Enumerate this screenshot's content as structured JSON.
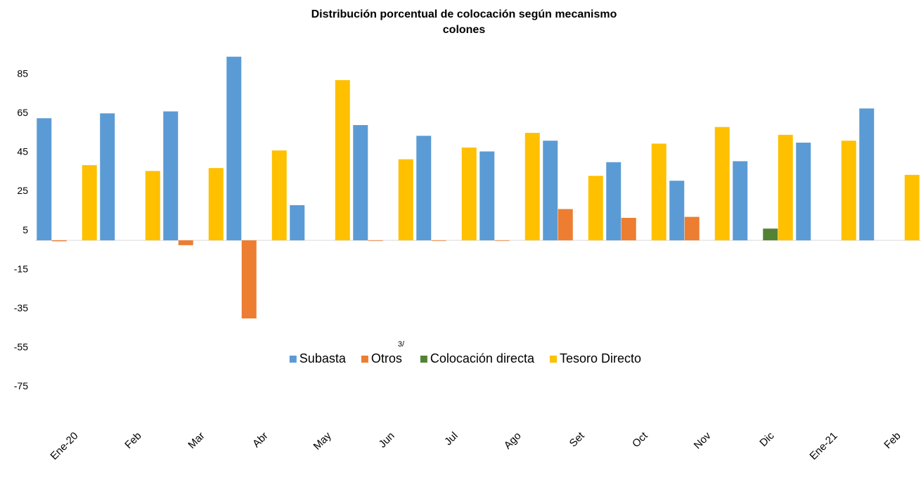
{
  "chart_data": {
    "type": "bar",
    "title": "Distribución porcentual de colocación según mecanismo",
    "subtitle": "colones",
    "categories": [
      "Ene-20",
      "Feb",
      "Mar",
      "Abr",
      "May",
      "Jun",
      "Jul",
      "Ago",
      "Set",
      "Oct",
      "Nov",
      "Dic",
      "Ene-21",
      "Feb"
    ],
    "series": [
      {
        "name": "Subasta",
        "color": "#5b9bd5",
        "values": [
          62.5,
          65,
          66,
          94,
          18,
          59,
          53.5,
          45.5,
          51,
          40,
          30.5,
          40.5,
          50,
          67.5
        ]
      },
      {
        "name": "Otros",
        "color": "#ed7d31",
        "values": [
          -0.5,
          null,
          -2.5,
          -40,
          null,
          -0.3,
          -0.3,
          -0.2,
          16,
          11.5,
          12,
          null,
          null,
          null
        ]
      },
      {
        "name": "Colocación directa",
        "color": "#548235",
        "values": [
          null,
          null,
          null,
          null,
          null,
          null,
          null,
          null,
          null,
          null,
          null,
          6,
          null,
          null
        ]
      },
      {
        "name": "Tesoro Directo",
        "color": "#ffc000",
        "values": [
          38.5,
          35.5,
          37,
          46,
          82,
          41.5,
          47.5,
          55,
          33,
          49.5,
          58,
          54,
          51,
          33.5
        ]
      }
    ],
    "annotations": [
      "3/"
    ],
    "ylim": [
      -95,
      100
    ],
    "yticks": [
      85,
      65,
      45,
      25,
      5,
      -15,
      -35,
      -55,
      -75
    ],
    "grid": false,
    "legend": "center"
  }
}
